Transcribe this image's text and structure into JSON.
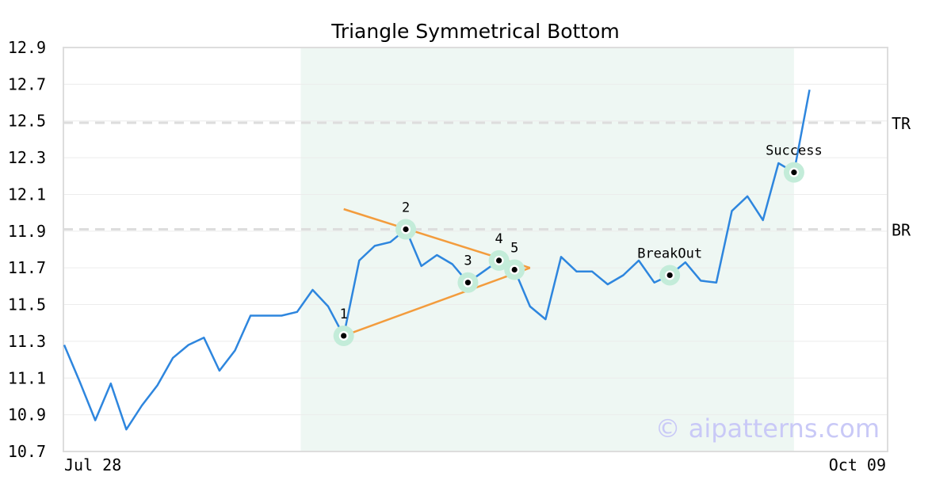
{
  "chart_data": {
    "type": "line",
    "title": "Triangle Symmetrical Bottom",
    "xlabel": "",
    "ylabel": "",
    "x_tick_labels": [
      "Jul 28",
      "Oct 09"
    ],
    "y_ticks": [
      "10.7",
      "10.9",
      "11.1",
      "11.3",
      "11.5",
      "11.7",
      "11.9",
      "12.1",
      "12.3",
      "12.5",
      "12.7",
      "12.9"
    ],
    "ylim": [
      10.7,
      12.9
    ],
    "grid": true,
    "series": [
      {
        "name": "",
        "color": "#2e86de",
        "values": [
          11.28,
          11.08,
          10.87,
          11.07,
          10.82,
          10.95,
          11.06,
          11.21,
          11.28,
          11.32,
          11.14,
          11.25,
          11.44,
          11.44,
          11.44,
          11.46,
          11.58,
          11.49,
          11.33,
          11.74,
          11.82,
          11.84,
          11.91,
          11.71,
          11.77,
          11.72,
          11.62,
          11.68,
          11.74,
          11.69,
          11.49,
          11.42,
          11.76,
          11.68,
          11.68,
          11.61,
          11.66,
          11.74,
          11.62,
          11.66,
          11.73,
          11.63,
          11.62,
          12.01,
          12.09,
          11.96,
          12.27,
          12.22,
          12.67
        ]
      }
    ],
    "pattern_shading": {
      "from_index": 16,
      "to_index": 47,
      "color": "#eef7f3"
    },
    "trendlines": [
      {
        "from": [
          18,
          12.02
        ],
        "to": [
          30,
          11.7
        ],
        "color": "#f39c3d"
      },
      {
        "from": [
          18,
          11.33
        ],
        "to": [
          30,
          11.7
        ],
        "color": "#f39c3d"
      }
    ],
    "reference_lines": [
      {
        "label": "TR",
        "value": 12.49
      },
      {
        "label": "BR",
        "value": 11.91
      }
    ],
    "points": [
      {
        "label": "1",
        "index": 18,
        "value": 11.33
      },
      {
        "label": "2",
        "index": 22,
        "value": 11.91
      },
      {
        "label": "3",
        "index": 26,
        "value": 11.62
      },
      {
        "label": "4",
        "index": 28,
        "value": 11.74
      },
      {
        "label": "5",
        "index": 29,
        "value": 11.69
      },
      {
        "label": "BreakOut",
        "index": 39,
        "value": 11.66
      },
      {
        "label": "Success",
        "index": 47,
        "value": 12.22
      }
    ],
    "watermark": "© aipatterns.com"
  }
}
